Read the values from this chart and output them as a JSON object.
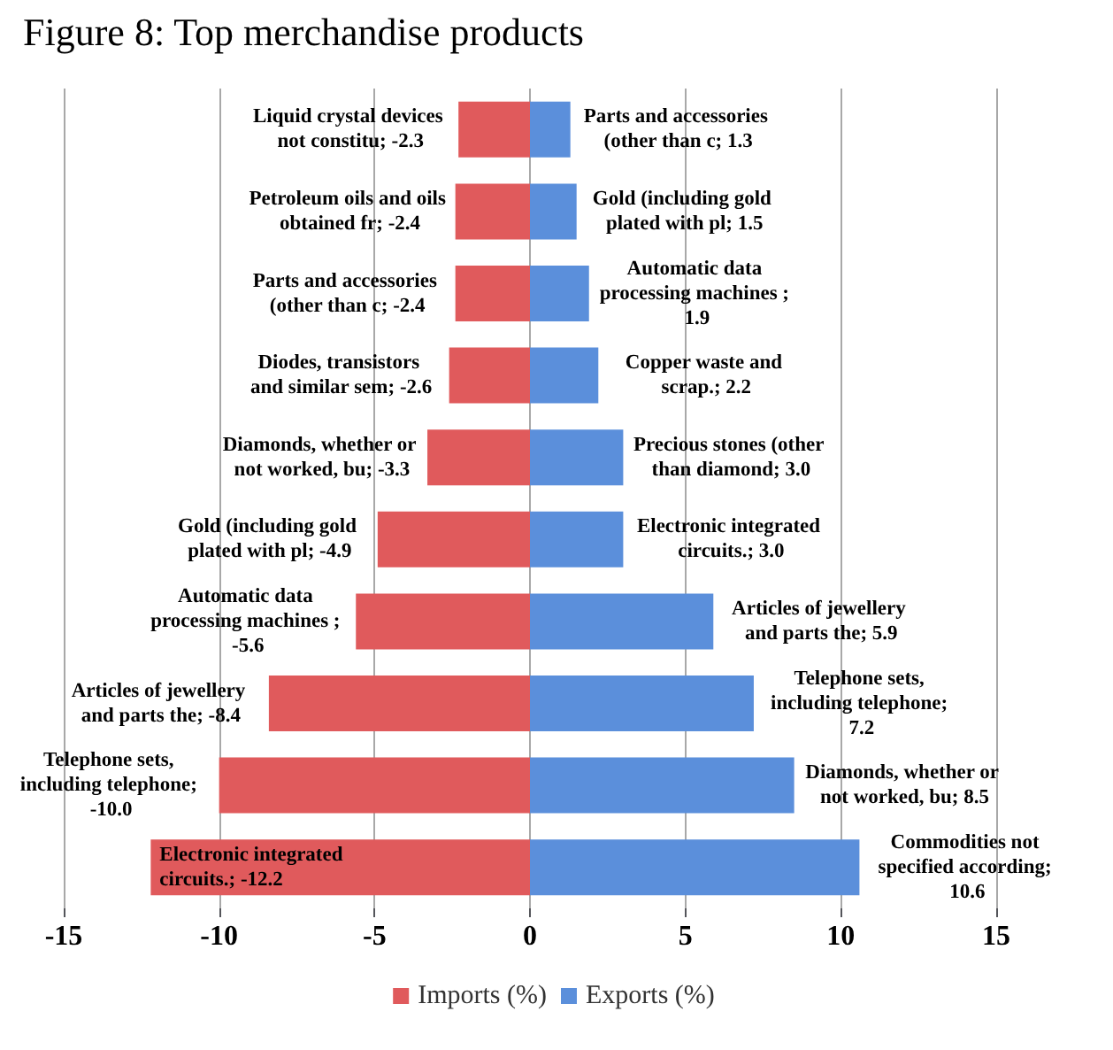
{
  "chart_data": {
    "type": "bar",
    "orientation": "horizontal",
    "title": "Figure 8: Top merchandise products",
    "categories": [
      null,
      null,
      null,
      null,
      null,
      null,
      null,
      null,
      null,
      null
    ],
    "series": [
      {
        "name": "Imports (%)",
        "color": "#e05a5c",
        "values": [
          -2.3,
          -2.4,
          -2.4,
          -2.6,
          -3.3,
          -4.9,
          -5.6,
          -8.4,
          -10.0,
          -12.2
        ],
        "value_labels": [
          "Liquid crystal devices not constitu; -2.3",
          "Petroleum oils and oils obtained fr; -2.4",
          "Parts and accessories (other than c; -2.4",
          "Diodes, transistors and similar sem; -2.6",
          "Diamonds, whether or not worked, bu; -3.3",
          "Gold (including gold plated with pl; -4.9",
          "Automatic data processing machines ; -5.6",
          "Articles of jewellery and parts the; -8.4",
          "Telephone sets, including telephone; -10.0",
          "Electronic integrated circuits.; -12.2"
        ]
      },
      {
        "name": "Exports (%)",
        "color": "#5b8fdb",
        "values": [
          1.3,
          1.5,
          1.9,
          2.2,
          3.0,
          3.0,
          5.9,
          7.2,
          8.5,
          10.6
        ],
        "value_labels": [
          "Parts and accessories (other than c; 1.3",
          "Gold (including gold plated with pl; 1.5",
          "Automatic data processing machines ; 1.9",
          "Copper waste and scrap.; 2.2",
          "Precious stones (other than diamond; 3.0",
          "Electronic integrated circuits.; 3.0",
          "Articles of jewellery and parts the; 5.9",
          "Telephone sets, including telephone; 7.2",
          "Diamonds, whether or not worked, bu; 8.5",
          "Commodities not specified according; 10.6"
        ]
      }
    ],
    "xlim": [
      -15,
      15
    ],
    "xticks": [
      -15,
      -10,
      -5,
      0,
      5,
      10,
      15
    ],
    "grid": "x",
    "legend": "bottom",
    "stacked": true
  }
}
